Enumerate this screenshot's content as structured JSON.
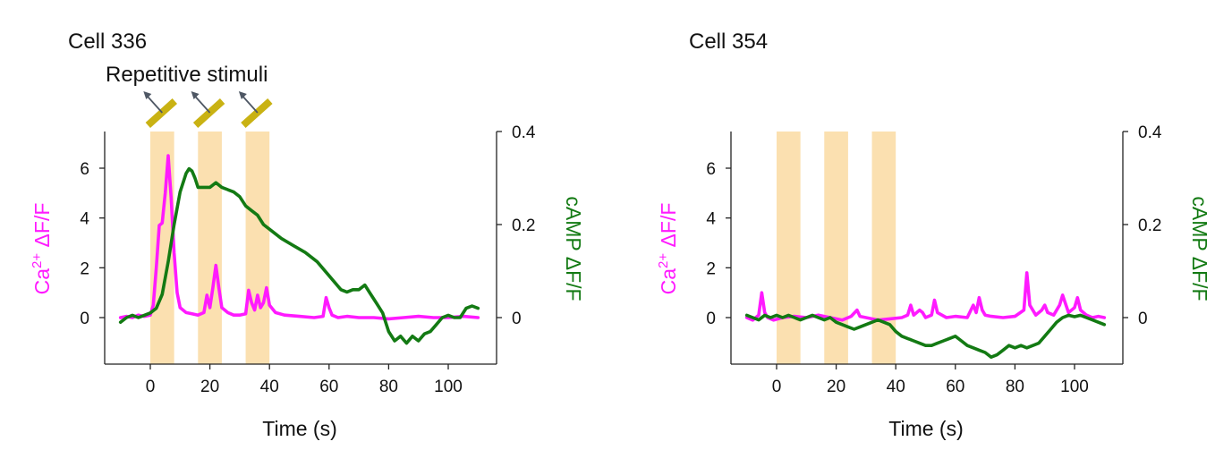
{
  "colors": {
    "calcium": "#ff1aff",
    "camp": "#137a13",
    "stimulus_band": "#fbe0b0",
    "stimulus_bar": "#c9b213",
    "arrow": "#4e5764",
    "axis": "#222222",
    "text": "#111111"
  },
  "annotation": {
    "text": "Repetitive stimuli"
  },
  "chart_data": [
    {
      "type": "line",
      "title": "Cell 336",
      "xlabel": "Time (s)",
      "ylabel_left": {
        "main": "Ca",
        "sup": "2+",
        "rest": " ΔF/F"
      },
      "ylabel_right": "cAMP ΔF/F",
      "xlim": [
        -15,
        115
      ],
      "xticks": [
        0,
        20,
        40,
        60,
        80,
        100
      ],
      "ylim_left": [
        -1.9,
        7.5
      ],
      "yticks_left": [
        0,
        2,
        4,
        6
      ],
      "ylim_right": [
        -0.1,
        0.4
      ],
      "yticks_right": [
        0,
        0.2,
        0.4
      ],
      "yticklabels_right": [
        "0",
        "0.2",
        "0.4"
      ],
      "stimuli": [
        [
          0,
          8
        ],
        [
          16,
          24
        ],
        [
          32,
          40
        ]
      ],
      "stimulus_icons": true,
      "series": [
        {
          "axis": "left",
          "color_key": "calcium",
          "x": [
            -10,
            -8,
            -6,
            -4,
            -2,
            0,
            1,
            2,
            3,
            4,
            5,
            6,
            7,
            8,
            9,
            10,
            12,
            14,
            16,
            18,
            19,
            20,
            21,
            22,
            23,
            24,
            26,
            28,
            30,
            32,
            33,
            34,
            35,
            36,
            37,
            38,
            39,
            40,
            42,
            45,
            50,
            55,
            58,
            59,
            60,
            61,
            63,
            66,
            70,
            75,
            80,
            85,
            90,
            95,
            100,
            105,
            110
          ],
          "y": [
            0.0,
            0.05,
            0.0,
            0.1,
            0.05,
            0.1,
            0.5,
            2.0,
            3.7,
            3.8,
            5.0,
            6.5,
            4.8,
            2.6,
            1.0,
            0.4,
            0.2,
            0.15,
            0.1,
            0.2,
            0.9,
            0.4,
            1.2,
            2.1,
            1.2,
            0.4,
            0.2,
            0.1,
            0.1,
            0.15,
            1.1,
            0.6,
            0.3,
            0.9,
            0.4,
            0.6,
            1.2,
            0.5,
            0.2,
            0.1,
            0.05,
            0.0,
            0.05,
            0.8,
            0.4,
            0.1,
            0.0,
            0.05,
            0.0,
            0.0,
            -0.05,
            0.0,
            0.05,
            0.0,
            0.0,
            0.05,
            0.0
          ]
        },
        {
          "axis": "right",
          "color_key": "camp",
          "x": [
            -10,
            -8,
            -6,
            -4,
            -2,
            0,
            2,
            4,
            6,
            8,
            10,
            12,
            13,
            14,
            15,
            16,
            18,
            20,
            22,
            24,
            26,
            28,
            30,
            32,
            34,
            36,
            38,
            40,
            44,
            48,
            52,
            56,
            60,
            64,
            66,
            68,
            70,
            72,
            74,
            76,
            78,
            80,
            82,
            84,
            86,
            88,
            90,
            92,
            94,
            96,
            98,
            100,
            102,
            104,
            106,
            108,
            110
          ],
          "y": [
            -0.01,
            0.0,
            0.005,
            0.0,
            0.005,
            0.01,
            0.02,
            0.05,
            0.12,
            0.2,
            0.27,
            0.31,
            0.32,
            0.315,
            0.3,
            0.28,
            0.28,
            0.28,
            0.29,
            0.28,
            0.275,
            0.27,
            0.26,
            0.24,
            0.23,
            0.22,
            0.2,
            0.19,
            0.17,
            0.155,
            0.14,
            0.12,
            0.09,
            0.06,
            0.055,
            0.06,
            0.06,
            0.07,
            0.05,
            0.03,
            0.01,
            -0.03,
            -0.05,
            -0.04,
            -0.055,
            -0.04,
            -0.05,
            -0.035,
            -0.03,
            -0.015,
            0.0,
            0.005,
            0.0,
            0.0,
            0.02,
            0.025,
            0.02
          ]
        }
      ]
    },
    {
      "type": "line",
      "title": "Cell 354",
      "xlabel": "Time (s)",
      "ylabel_left": {
        "main": "Ca",
        "sup": "2+",
        "rest": " ΔF/F"
      },
      "ylabel_right": "cAMP ΔF/F",
      "xlim": [
        -15,
        115
      ],
      "xticks": [
        0,
        20,
        40,
        60,
        80,
        100
      ],
      "ylim_left": [
        -1.9,
        7.5
      ],
      "yticks_left": [
        0,
        2,
        4,
        6
      ],
      "ylim_right": [
        -0.1,
        0.4
      ],
      "yticks_right": [
        0,
        0.2,
        0.4
      ],
      "yticklabels_right": [
        "0",
        "0.2",
        "0.4"
      ],
      "stimuli": [
        [
          0,
          8
        ],
        [
          16,
          24
        ],
        [
          32,
          40
        ]
      ],
      "stimulus_icons": false,
      "series": [
        {
          "axis": "left",
          "color_key": "calcium",
          "x": [
            -10,
            -8,
            -6,
            -5,
            -4,
            -3,
            -1,
            2,
            6,
            10,
            14,
            18,
            22,
            25,
            27,
            28,
            30,
            34,
            38,
            42,
            44,
            45,
            46,
            48,
            49,
            50,
            52,
            53,
            54,
            57,
            60,
            64,
            66,
            67,
            68,
            69,
            70,
            72,
            76,
            80,
            83,
            84,
            85,
            87,
            89,
            90,
            91,
            93,
            95,
            96,
            98,
            100,
            101,
            102,
            104,
            106,
            108,
            110
          ],
          "y": [
            0.0,
            -0.1,
            0.1,
            1.0,
            0.2,
            0.0,
            -0.1,
            0.0,
            0.05,
            0.0,
            0.1,
            0.0,
            -0.1,
            0.05,
            0.3,
            0.05,
            0.0,
            -0.1,
            -0.05,
            0.0,
            0.1,
            0.5,
            0.1,
            0.3,
            0.2,
            0.0,
            0.1,
            0.7,
            0.2,
            0.0,
            0.05,
            0.0,
            0.5,
            0.2,
            0.8,
            0.3,
            0.1,
            0.05,
            0.0,
            0.05,
            0.3,
            1.8,
            0.5,
            0.1,
            0.3,
            0.5,
            0.2,
            0.1,
            0.5,
            0.9,
            0.2,
            0.4,
            0.8,
            0.3,
            0.1,
            0.0,
            0.05,
            0.0
          ]
        },
        {
          "axis": "right",
          "color_key": "camp",
          "x": [
            -10,
            -8,
            -6,
            -4,
            -2,
            0,
            2,
            4,
            6,
            8,
            10,
            12,
            14,
            16,
            18,
            20,
            22,
            24,
            26,
            28,
            30,
            32,
            34,
            36,
            38,
            40,
            42,
            44,
            46,
            48,
            50,
            52,
            54,
            56,
            58,
            60,
            62,
            64,
            66,
            68,
            70,
            72,
            74,
            76,
            78,
            80,
            82,
            84,
            86,
            88,
            90,
            92,
            94,
            96,
            98,
            100,
            102,
            104,
            106,
            108,
            110
          ],
          "y": [
            0.005,
            0.0,
            -0.005,
            0.005,
            0.0,
            0.005,
            0.0,
            0.005,
            0.0,
            -0.005,
            0.0,
            0.005,
            0.0,
            -0.005,
            0.0,
            -0.01,
            -0.015,
            -0.02,
            -0.025,
            -0.02,
            -0.015,
            -0.01,
            -0.005,
            -0.01,
            -0.015,
            -0.03,
            -0.04,
            -0.045,
            -0.05,
            -0.055,
            -0.06,
            -0.06,
            -0.055,
            -0.05,
            -0.045,
            -0.04,
            -0.05,
            -0.06,
            -0.065,
            -0.07,
            -0.075,
            -0.085,
            -0.08,
            -0.07,
            -0.06,
            -0.065,
            -0.06,
            -0.065,
            -0.06,
            -0.055,
            -0.04,
            -0.025,
            -0.01,
            0.0,
            0.005,
            0.002,
            0.005,
            0.0,
            -0.005,
            -0.01,
            -0.015
          ]
        }
      ]
    }
  ]
}
